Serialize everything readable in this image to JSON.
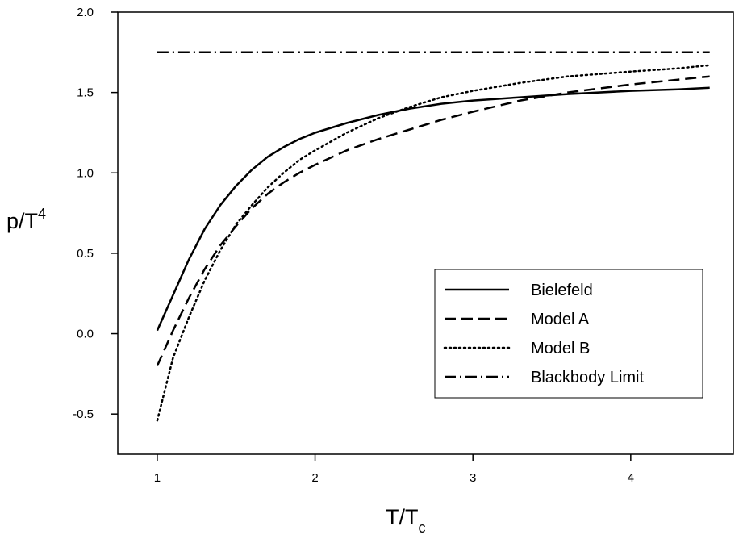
{
  "chart_data": {
    "type": "line",
    "title": "",
    "xlabel": {
      "main": "T/T",
      "sub": "c"
    },
    "ylabel": {
      "main": "p/T",
      "sup": "4"
    },
    "xlim": [
      0.75,
      4.65
    ],
    "ylim": [
      -0.75,
      2.0
    ],
    "xticks": [
      1,
      2,
      3,
      4
    ],
    "xtick_labels": [
      "1",
      "2",
      "3",
      "4"
    ],
    "yticks": [
      -0.5,
      0.0,
      0.5,
      1.0,
      1.5,
      2.0
    ],
    "ytick_labels": [
      "-0.5",
      "0.0",
      "0.5",
      "1.0",
      "1.5",
      "2.0"
    ],
    "grid": false,
    "legend_position": "lower-right",
    "series": [
      {
        "name": "Bielefeld",
        "style": "solid",
        "x": [
          1.0,
          1.1,
          1.2,
          1.3,
          1.4,
          1.5,
          1.6,
          1.7,
          1.8,
          1.9,
          2.0,
          2.2,
          2.4,
          2.6,
          2.8,
          3.0,
          3.3,
          3.6,
          4.0,
          4.3,
          4.5
        ],
        "y": [
          0.02,
          0.24,
          0.46,
          0.65,
          0.8,
          0.92,
          1.02,
          1.1,
          1.16,
          1.21,
          1.25,
          1.31,
          1.36,
          1.4,
          1.43,
          1.45,
          1.47,
          1.49,
          1.51,
          1.52,
          1.53
        ]
      },
      {
        "name": "Model A",
        "style": "dashed",
        "x": [
          1.0,
          1.1,
          1.2,
          1.3,
          1.4,
          1.5,
          1.6,
          1.7,
          1.8,
          1.9,
          2.0,
          2.2,
          2.4,
          2.6,
          2.8,
          3.0,
          3.3,
          3.6,
          4.0,
          4.3,
          4.5
        ],
        "y": [
          -0.2,
          0.02,
          0.22,
          0.4,
          0.55,
          0.67,
          0.78,
          0.87,
          0.94,
          1.0,
          1.05,
          1.14,
          1.21,
          1.27,
          1.33,
          1.38,
          1.45,
          1.5,
          1.55,
          1.58,
          1.6
        ]
      },
      {
        "name": "Model B",
        "style": "dotted",
        "x": [
          1.0,
          1.1,
          1.2,
          1.3,
          1.4,
          1.5,
          1.6,
          1.7,
          1.8,
          1.9,
          2.0,
          2.2,
          2.4,
          2.6,
          2.8,
          3.0,
          3.3,
          3.6,
          4.0,
          4.3,
          4.5
        ],
        "y": [
          -0.54,
          -0.15,
          0.1,
          0.33,
          0.52,
          0.68,
          0.8,
          0.91,
          1.0,
          1.08,
          1.14,
          1.25,
          1.34,
          1.41,
          1.47,
          1.51,
          1.56,
          1.6,
          1.63,
          1.65,
          1.67
        ]
      },
      {
        "name": "Blackbody Limit",
        "style": "dashdot",
        "x": [
          1.0,
          4.5
        ],
        "y": [
          1.75,
          1.75
        ]
      }
    ]
  },
  "colors": {
    "line": "#000000",
    "background": "#ffffff"
  }
}
